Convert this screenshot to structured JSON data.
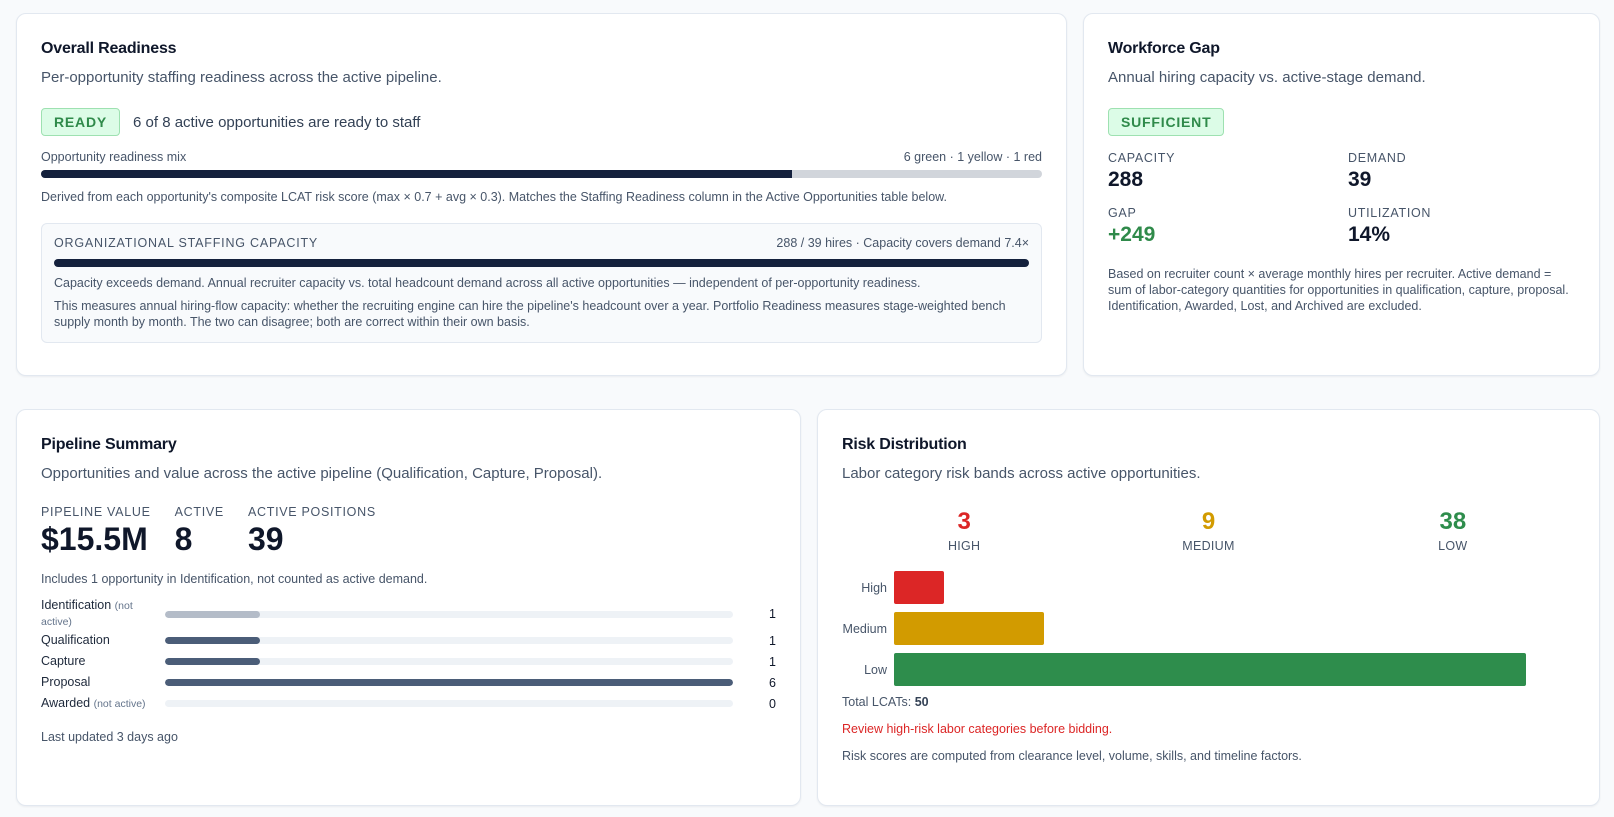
{
  "readiness": {
    "title": "Overall Readiness",
    "subtitle": "Per-opportunity staffing readiness across the active pipeline.",
    "badge": "READY",
    "summary": "6 of 8 active opportunities are ready to staff",
    "mix_label": "Opportunity readiness mix",
    "mix_counts": "6 green · 1 yellow · 1 red",
    "mix_ready_fraction": 0.75,
    "derived_note": "Derived from each opportunity's composite LCAT risk score (max × 0.7 + avg × 0.3). Matches the Staffing Readiness column in the Active Opportunities table below.",
    "org": {
      "title": "ORGANIZATIONAL STAFFING CAPACITY",
      "metric": "288 / 39 hires · Capacity covers demand 7.4×",
      "capacity_fill_fraction": 1.0,
      "line1": "Capacity exceeds demand. Annual recruiter capacity vs. total headcount demand across all active opportunities — independent of per-opportunity readiness.",
      "line2": "This measures annual hiring-flow capacity: whether the recruiting engine can hire the pipeline's headcount over a year. Portfolio Readiness measures stage-weighted bench supply month by month. The two can disagree; both are correct within their own basis."
    }
  },
  "workforce_gap": {
    "title": "Workforce Gap",
    "subtitle": "Annual hiring capacity vs. active-stage demand.",
    "badge": "SUFFICIENT",
    "capacity_label": "CAPACITY",
    "capacity_value": "288",
    "demand_label": "DEMAND",
    "demand_value": "39",
    "gap_label": "GAP",
    "gap_value": "+249",
    "utilization_label": "UTILIZATION",
    "utilization_value": "14%",
    "note": "Based on recruiter count × average monthly hires per recruiter. Active demand = sum of labor-category quantities for opportunities in qualification, capture, proposal. Identification, Awarded, Lost, and Archived are excluded."
  },
  "pipeline": {
    "title": "Pipeline Summary",
    "subtitle": "Opportunities and value across the active pipeline (Qualification, Capture, Proposal).",
    "value_label": "PIPELINE VALUE",
    "value": "$15.5M",
    "active_label": "ACTIVE",
    "active": "8",
    "positions_label": "ACTIVE POSITIONS",
    "positions": "39",
    "note": "Includes 1 opportunity in Identification, not counted as active demand.",
    "stages": [
      {
        "name": "Identification",
        "qualifier": "(not active)",
        "count": "1",
        "value": 1,
        "muted": true
      },
      {
        "name": "Qualification",
        "qualifier": "",
        "count": "1",
        "value": 1,
        "muted": false
      },
      {
        "name": "Capture",
        "qualifier": "",
        "count": "1",
        "value": 1,
        "muted": false
      },
      {
        "name": "Proposal",
        "qualifier": "",
        "count": "6",
        "value": 6,
        "muted": false
      },
      {
        "name": "Awarded",
        "qualifier": "(not active)",
        "count": "0",
        "value": 0,
        "muted": true
      }
    ],
    "stage_max": 6,
    "updated": "Last updated 3 days ago"
  },
  "risk": {
    "title": "Risk Distribution",
    "subtitle": "Labor category risk bands across active opportunities.",
    "high_count": "3",
    "high_label": "HIGH",
    "medium_count": "9",
    "medium_label": "MEDIUM",
    "low_count": "38",
    "low_label": "LOW",
    "colors": {
      "high": "#dc2626",
      "medium": "#d29b00",
      "low": "#2e8d4c"
    },
    "total_label": "Total LCATs:",
    "total_value": "50",
    "warning": "Review high-risk labor categories before bidding.",
    "footnote": "Risk scores are computed from clearance level, volume, skills, and timeline factors."
  },
  "chart_data": {
    "type": "bar",
    "categories": [
      "High",
      "Medium",
      "Low"
    ],
    "values": [
      3,
      9,
      38
    ],
    "xlim": [
      0,
      38
    ],
    "title": "",
    "xlabel": "",
    "ylabel": ""
  }
}
